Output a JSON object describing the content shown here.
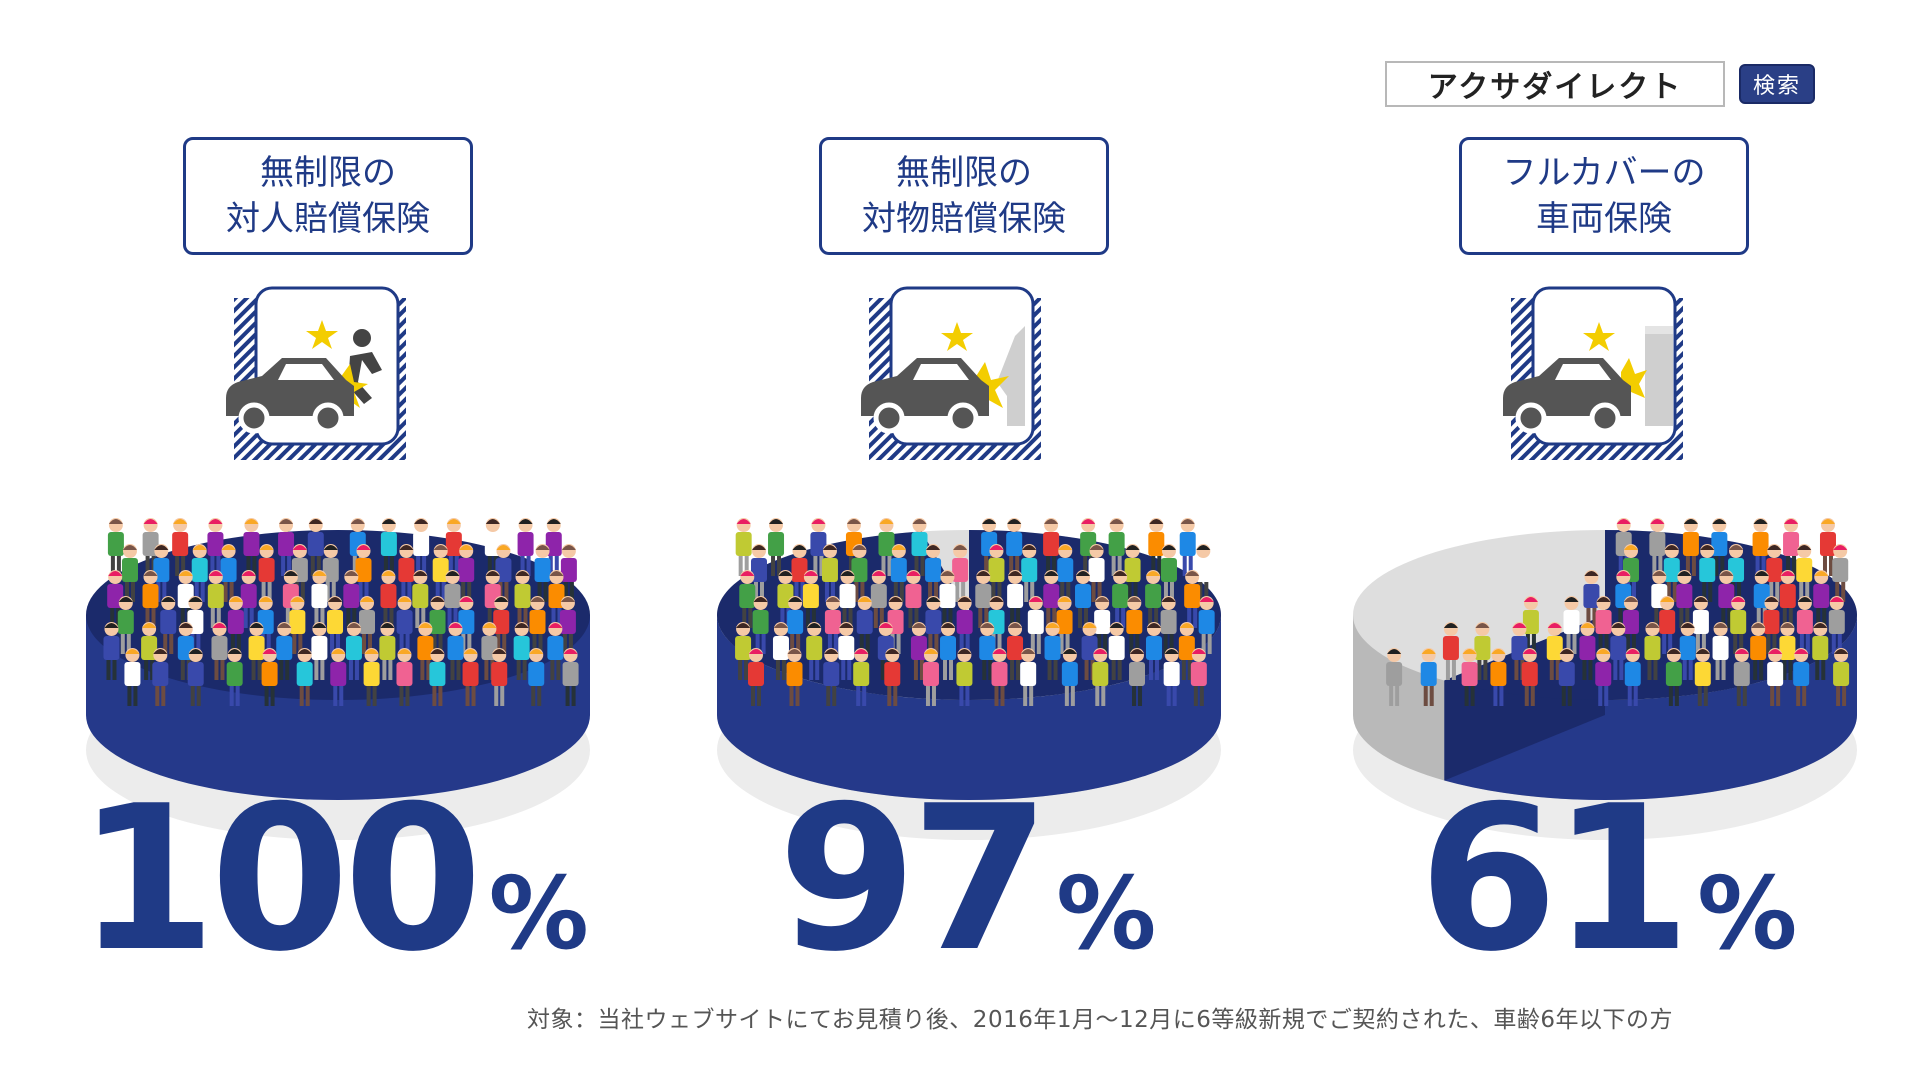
{
  "search": {
    "query": "アクサダイレクト",
    "button_label": "検索"
  },
  "colors": {
    "navy": "#1f3a86",
    "disk": "#25398a",
    "disk_dark": "#1b2a6b",
    "gray": "#b9b9b9",
    "gray_top": "#dedede",
    "shadow": "#ececec",
    "star": "#f3cd00"
  },
  "panels": [
    {
      "line1": "無制限の",
      "line2": "対人賠償保険",
      "icon": "car-hitting-person-icon",
      "value": "100",
      "unit": "%"
    },
    {
      "line1": "無制限の",
      "line2": "対物賠償保険",
      "icon": "car-hitting-wall-icon",
      "value": "97",
      "unit": "%"
    },
    {
      "line1": "フルカバーの",
      "line2": "車両保険",
      "icon": "car-hitting-pillar-icon",
      "value": "61",
      "unit": "%"
    }
  ],
  "chart_data": {
    "type": "pie",
    "categories": [
      "無制限の対人賠償保険",
      "無制限の対物賠償保険",
      "フルカバーの車両保険"
    ],
    "values": [
      100,
      97,
      61
    ],
    "unit": "%",
    "ylim": [
      0,
      100
    ]
  },
  "footnote": "対象：当社ウェブサイトにてお見積り後、2016年1月～12月に6等級新規でご契約された、車齢6年以下の方"
}
